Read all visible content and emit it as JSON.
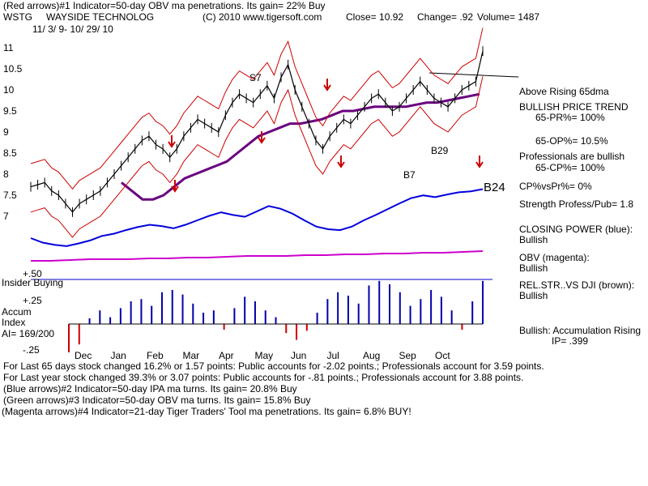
{
  "header": {
    "line1": "(Red arrows)#1 Indicator=50-day OBV ma penetrations. Its gain= 22% Buy",
    "ticker": "WSTG",
    "company": "WAYSIDE TECHNOLOG",
    "copyright": "(C) 2010 www.tigersoft.com",
    "close": "Close=  10.92",
    "change": "Change= .92",
    "volume": "Volume= 1487",
    "date_range": "11/ 3/ 9- 10/ 29/ 10"
  },
  "right_panel": {
    "above_rising": "Above Rising 65dma",
    "trend": "BULLISH PRICE TREND",
    "pr": "65-PR%= 100%",
    "op": "65-OP%= 10.5%",
    "pros": "Professionals are bullish",
    "cp": "65-CP%= 100%",
    "cpvspr": "CP%vsPr%=  0%",
    "strength": "Strength Profess/Pub= 1.8",
    "closing_power": "CLOSING POWER (blue):",
    "closing_power_val": "Bullish",
    "obv": "OBV (magenta):",
    "obv_val": "Bullish",
    "relstr": "REL.STR..VS DJI (brown):",
    "relstr_val": "Bullish",
    "accum": "Bullish: Accumulation Rising",
    "ip": "IP=  .399",
    "b24": "B24"
  },
  "indicator_labels": {
    "plus50": "+.50",
    "insider": "Insider Buying",
    "plus25": "+.25",
    "accum": "Accum",
    "index": "Index",
    "ai": "AI= 169/200",
    "minus25": "-.25"
  },
  "bottom": {
    "line1": "For Last 65 days stock changed  16.2% or  1.57 points:  Public accounts for -2.02 points.;  Professionals account for  3.59 points.",
    "line2": "For Last year stock changed  39.3% or  3.07 points:  Public accounts for -.81 points.;  Professionals account for  3.88 points.",
    "line3": "(Blue arrows)#2 Indicator=50-day IPA ma turns. Its gain= 20.8% Buy",
    "line4": "(Green arrows)#3 Indicator=50-day OBV ma turns. Its gain= 15.8% Buy",
    "line5": "(Magenta arrows)#4 Indicator=21-day Tiger Traders' Tool ma penetrations. Its gain= 6.8% BUY!"
  },
  "chart_data": {
    "type": "line",
    "ylim": [
      6.6,
      11.3
    ],
    "y_ticks": [
      "11",
      "10.5",
      "10",
      "9.5",
      "9",
      "8.5",
      "8",
      "7.5",
      "7"
    ],
    "x_tick_labels": [
      "Dec",
      "Jan",
      "Feb",
      "Mar",
      "Apr",
      "May",
      "Jun",
      "Jul",
      "Aug",
      "Sep",
      "Oct"
    ],
    "signal_labels": [
      "S7",
      "B29",
      "B7"
    ],
    "series": [
      {
        "values": [
          7.7,
          7.75,
          7.8,
          7.6,
          7.5,
          7.3,
          7.1,
          7.3,
          7.4,
          7.5,
          7.6,
          7.8,
          8.0,
          8.2,
          8.4,
          8.6,
          8.8,
          8.9,
          8.7,
          8.6,
          8.4,
          8.6,
          8.9,
          9.1,
          9.3,
          9.2,
          9.1,
          9.0,
          9.4,
          9.7,
          9.9,
          9.8,
          9.7,
          9.9,
          10.1,
          9.8,
          10.3,
          10.6,
          10.0,
          9.6,
          9.2,
          8.8,
          8.6,
          8.9,
          9.1,
          9.3,
          9.2,
          9.4,
          9.6,
          9.8,
          9.9,
          9.7,
          9.5,
          9.6,
          9.8,
          10.0,
          10.2,
          10.0,
          9.8,
          9.7,
          9.6,
          9.8,
          10.0,
          10.1,
          10.2,
          10.92
        ]
      },
      {
        "values": [
          7.8,
          7.6,
          7.4,
          7.4,
          7.5,
          7.7,
          7.9,
          8.0,
          8.1,
          8.2,
          8.3,
          8.5,
          8.7,
          8.9,
          9.0,
          9.1,
          9.2,
          9.2,
          9.25,
          9.3,
          9.4,
          9.5,
          9.5,
          9.55,
          9.6,
          9.6,
          9.6,
          9.6,
          9.65,
          9.7,
          9.7,
          9.75,
          9.8,
          9.85,
          9.9
        ]
      },
      {
        "values": [
          100,
          90,
          85,
          82,
          88,
          95,
          105,
          110,
          118,
          125,
          130,
          127,
          122,
          130,
          140,
          150,
          158,
          152,
          148,
          160,
          172,
          166,
          155,
          140,
          126,
          120,
          118,
          126,
          140,
          152,
          165,
          178,
          190,
          196,
          192,
          198,
          203,
          205,
          210
        ]
      },
      {
        "values": [
          42,
          42,
          41,
          40,
          40,
          40,
          39,
          39,
          38,
          38,
          37,
          36,
          36,
          36,
          35,
          35,
          34,
          34,
          33,
          33,
          32,
          32,
          31,
          30
        ]
      }
    ],
    "accumulation_index": {
      "values": [
        -0.25,
        -0.18,
        0.05,
        0.12,
        0.06,
        0.14,
        0.2,
        0.22,
        0.16,
        0.28,
        0.3,
        0.26,
        0.18,
        0.1,
        0.12,
        -0.05,
        0.14,
        0.24,
        0.2,
        0.12,
        0.06,
        -0.08,
        -0.14,
        -0.06,
        0.1,
        0.22,
        0.28,
        0.25,
        0.18,
        0.34,
        0.38,
        0.35,
        0.28,
        0.16,
        0.22,
        0.3,
        0.24,
        0.12,
        -0.05,
        0.2,
        0.38
      ]
    }
  }
}
